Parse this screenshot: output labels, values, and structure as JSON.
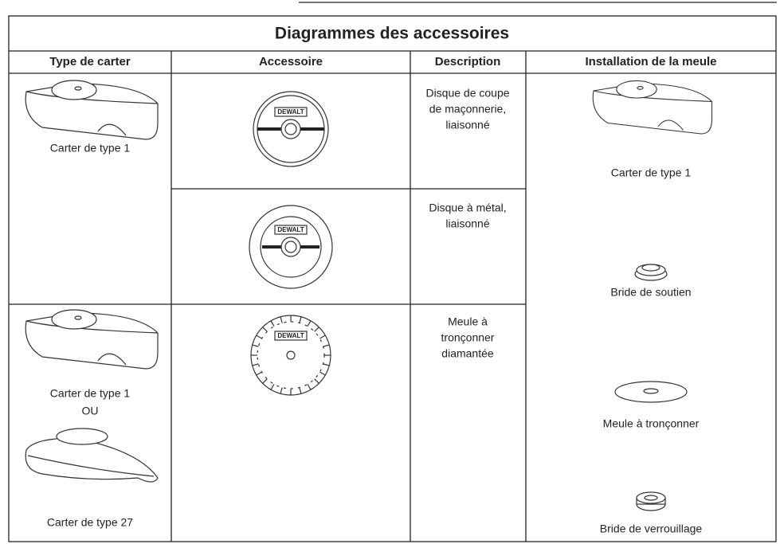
{
  "title": "Diagrammes des accessoires",
  "headers": [
    "Type de carter",
    "Accessoire",
    "Description",
    "Installation de la meule"
  ],
  "guards": [
    {
      "labels": [
        "Carter de type 1"
      ]
    },
    {
      "labels": [
        "Carter de type 1",
        "OU",
        "Carter de type 27"
      ]
    }
  ],
  "accessories": [
    {
      "logo": "DEWALT",
      "description": [
        "Disque de coupe",
        "de maçonnerie,",
        "liaisonné"
      ]
    },
    {
      "logo": "DEWALT",
      "description": [
        "Disque à métal,",
        "liaisonné"
      ]
    },
    {
      "logo": "DEWALT",
      "description": [
        "Meule à",
        "tronçonner",
        "diamantée"
      ]
    }
  ],
  "installation": [
    "Carter de type 1",
    "Bride de soutien",
    "Meule à tronçonner",
    "Bride de verrouillage"
  ]
}
